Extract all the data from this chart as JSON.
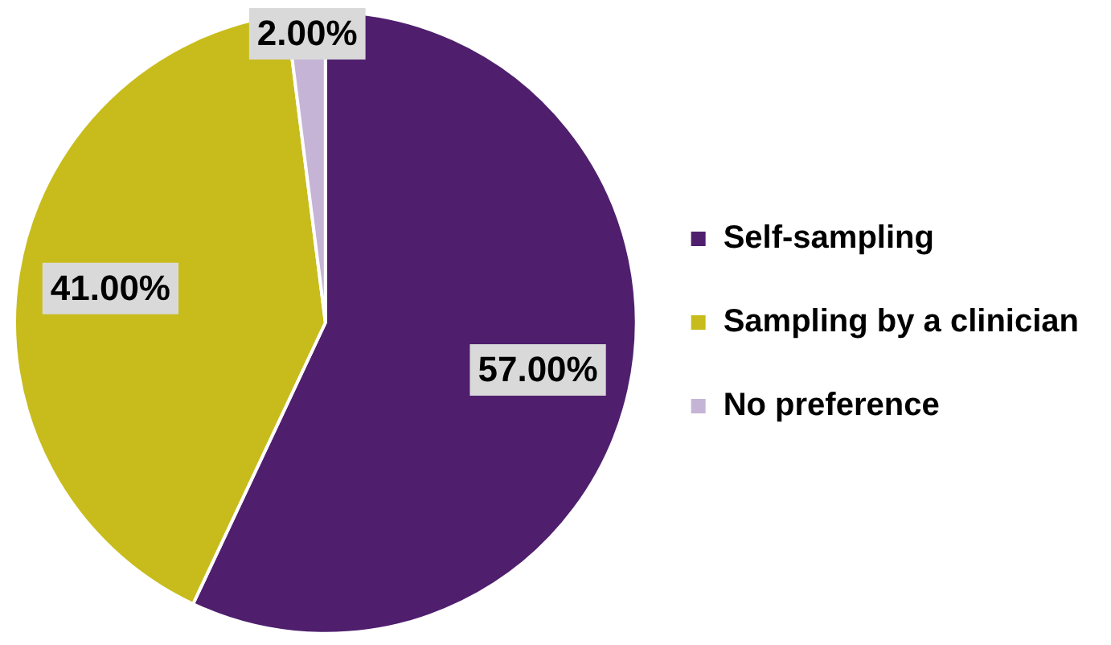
{
  "chart_data": {
    "type": "pie",
    "categories": [
      "Self-sampling",
      "Sampling by a clinician",
      "No preference"
    ],
    "values": [
      57,
      41,
      2
    ],
    "colors": [
      "#4f1f6e",
      "#c8bc1c",
      "#c6b4d6"
    ],
    "value_labels": [
      "57.00%",
      "41.00%",
      "2.00%"
    ],
    "legend": "right"
  }
}
